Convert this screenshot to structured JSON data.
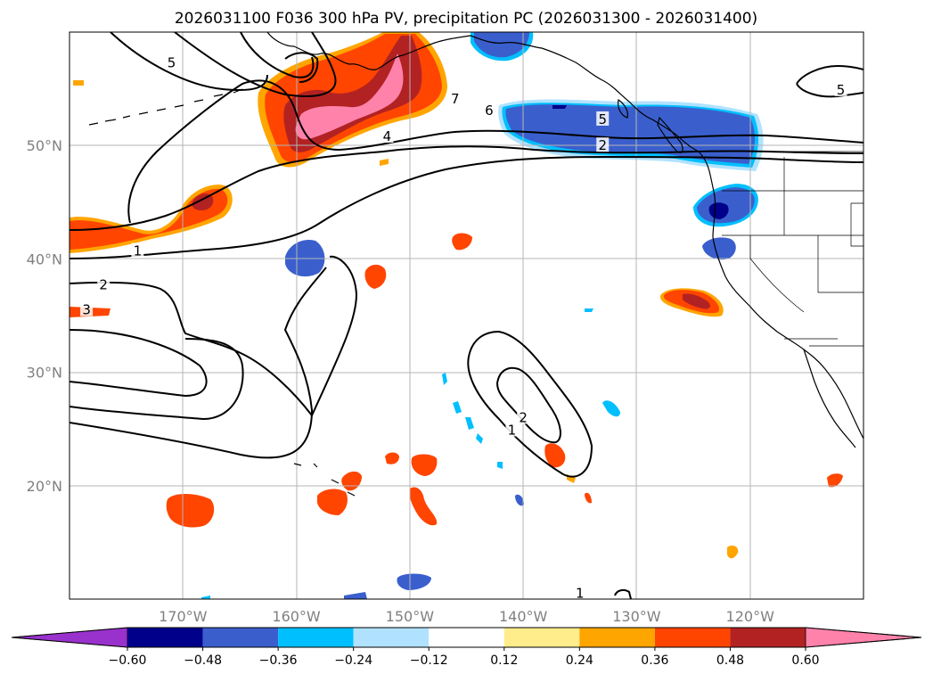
{
  "title": "2026031100 F036 300 hPa PV, precipitation PC (2026031300 - 2026031400)",
  "chart_data": {
    "type": "contour-map",
    "title": "2026031100 F036 300 hPa PV, precipitation PC (2026031300 - 2026031400)",
    "projection": "PlateCarree",
    "lon_range": [
      -180,
      -110
    ],
    "lat_range": [
      10,
      60
    ],
    "grid": true,
    "lat_ticks": [
      {
        "lat": 50,
        "label": "50°N"
      },
      {
        "lat": 40,
        "label": "40°N"
      },
      {
        "lat": 30,
        "label": "30°N"
      },
      {
        "lat": 20,
        "label": "20°N"
      }
    ],
    "lon_ticks": [
      {
        "lon": -170,
        "label": "170°W"
      },
      {
        "lon": -160,
        "label": "160°W"
      },
      {
        "lon": -150,
        "label": "150°W"
      },
      {
        "lon": -140,
        "label": "140°W"
      },
      {
        "lon": -130,
        "label": "130°W"
      },
      {
        "lon": -120,
        "label": "120°W"
      }
    ],
    "colorbar": {
      "extend": "both",
      "boundaries": [
        -0.6,
        -0.48,
        -0.36,
        -0.24,
        -0.12,
        0.12,
        0.24,
        0.36,
        0.48,
        0.6
      ],
      "tick_labels": [
        "−0.60",
        "−0.48",
        "−0.36",
        "−0.24",
        "−0.12",
        "0.12",
        "0.24",
        "0.36",
        "0.48",
        "0.60"
      ],
      "colors": [
        "#9932cc",
        "#00008b",
        "#3a5fcd",
        "#00bfff",
        "#b0e2ff",
        "#ffffff",
        "#ffec8b",
        "#ffa500",
        "#ff4500",
        "#b22222",
        "#ff82ab"
      ]
    },
    "pv_contour_labels": [
      {
        "value": "5",
        "lon": -171,
        "lat": 57.3
      },
      {
        "value": "7",
        "lon": -146,
        "lat": 54.1
      },
      {
        "value": "6",
        "lon": -143,
        "lat": 53.1
      },
      {
        "value": "5",
        "lon": -133,
        "lat": 52.3
      },
      {
        "value": "4",
        "lon": -152,
        "lat": 50.8
      },
      {
        "value": "2",
        "lon": -133,
        "lat": 50.0
      },
      {
        "value": "1",
        "lon": -174,
        "lat": 40.7
      },
      {
        "value": "2",
        "lon": -177,
        "lat": 37.7
      },
      {
        "value": "3",
        "lon": -178.5,
        "lat": 35.5
      },
      {
        "value": "2",
        "lon": -140,
        "lat": 26.0
      },
      {
        "value": "1",
        "lon": -141,
        "lat": 24.9
      },
      {
        "value": "5",
        "lon": -112,
        "lat": 54.9
      },
      {
        "value": "1",
        "lon": -135,
        "lat": 10.5
      }
    ]
  }
}
